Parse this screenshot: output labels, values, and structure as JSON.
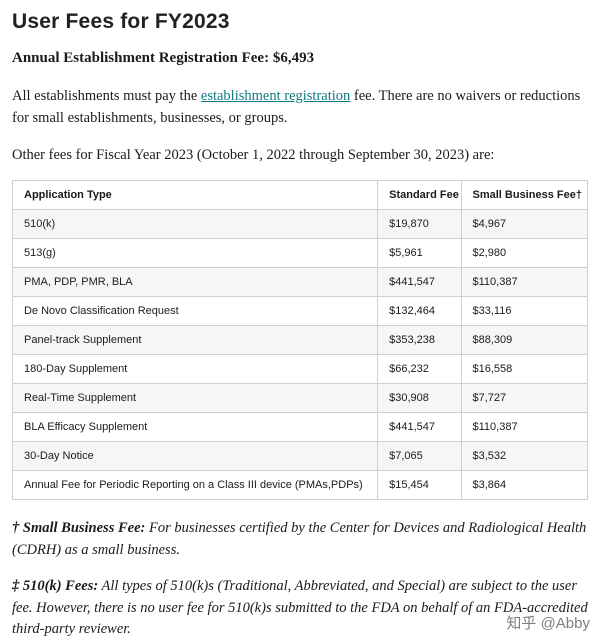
{
  "page": {
    "title": "User Fees for FY2023",
    "subheading": "Annual Establishment Registration Fee: $6,493",
    "para1_pre": "All establishments must pay the ",
    "para1_link": "establishment registration",
    "para1_post": " fee. There are no waivers or reductions for small establishments, businesses, or groups.",
    "para2": "Other fees for Fiscal Year 2023 (October 1, 2022 through September 30, 2023) are:"
  },
  "table": {
    "headers": [
      "Application Type",
      "Standard Fee",
      "Small Business Fee†"
    ],
    "rows": [
      [
        "510(k)",
        "$19,870",
        "$4,967"
      ],
      [
        "513(g)",
        "$5,961",
        "$2,980"
      ],
      [
        "PMA, PDP, PMR, BLA",
        "$441,547",
        "$110,387"
      ],
      [
        "De Novo Classification Request",
        "$132,464",
        "$33,116"
      ],
      [
        "Panel-track Supplement",
        "$353,238",
        "$88,309"
      ],
      [
        "180-Day Supplement",
        "$66,232",
        "$16,558"
      ],
      [
        "Real-Time Supplement",
        "$30,908",
        "$7,727"
      ],
      [
        "BLA Efficacy Supplement",
        "$441,547",
        "$110,387"
      ],
      [
        "30-Day Notice",
        "$7,065",
        "$3,532"
      ],
      [
        "Annual Fee for Periodic Reporting on a Class III device (PMAs,PDPs)",
        "$15,454",
        "$3,864"
      ]
    ]
  },
  "footnotes": {
    "fn1_label": "† Small Business Fee:",
    "fn1_text": " For businesses certified by the Center for Devices and Radiological Health (CDRH) as a small business.",
    "fn2_label": "‡ 510(k) Fees:",
    "fn2_text": " All types of 510(k)s (Traditional, Abbreviated, and Special) are subject to the user fee. However, there is no user fee for 510(k)s submitted to the FDA on behalf of an FDA-accredited third-party reviewer."
  },
  "watermark": "知乎 @Abby",
  "colors": {
    "link": "#0d7a83",
    "row_stripe": "#f6f6f6",
    "table_border": "#d0d0d0"
  }
}
